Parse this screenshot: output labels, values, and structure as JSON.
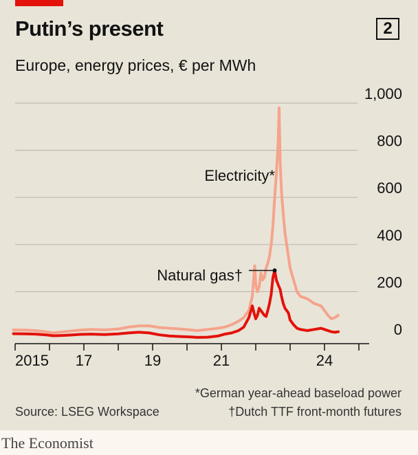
{
  "header": {
    "title": "Putin’s present",
    "chart_number": "2",
    "subtitle": "Europe, energy prices, € per MWh"
  },
  "footer": {
    "note_electricity": "*German year-ahead baseload power",
    "note_gas": "†Dutch TTF front-month futures",
    "source": "Source: LSEG Workspace",
    "brand": "The Economist"
  },
  "colors": {
    "electricity": "#f5a48d",
    "gas": "#e3120b",
    "grid": "#bfbab1",
    "accent": "#e3120b"
  },
  "chart_data": {
    "type": "line",
    "title": "Putin’s present",
    "subtitle": "Europe, energy prices, € per MWh",
    "ylim": [
      0,
      1000
    ],
    "yticks": [
      0,
      200,
      400,
      600,
      800,
      1000
    ],
    "ytick_labels": [
      "0",
      "200",
      "400",
      "600",
      "800",
      "1,000"
    ],
    "xlim": [
      2015,
      2025.3
    ],
    "xticks": [
      2015,
      2016,
      2017,
      2018,
      2019,
      2020,
      2021,
      2022,
      2023,
      2024,
      2025
    ],
    "xtick_labels": [
      {
        "x": 2015,
        "label": "2015"
      },
      {
        "x": 2017,
        "label": "17"
      },
      {
        "x": 2019,
        "label": "19"
      },
      {
        "x": 2021,
        "label": "21"
      },
      {
        "x": 2024,
        "label": "24"
      }
    ],
    "grid": true,
    "annotations": [
      {
        "series": "Electricity*",
        "text": "Electricity*"
      },
      {
        "series": "Natural gas†",
        "text": "Natural gas†"
      }
    ],
    "series": [
      {
        "name": "Electricity*",
        "x": [
          2014.95,
          2015.3,
          2015.6,
          2015.9,
          2016.1,
          2016.3,
          2016.6,
          2016.9,
          2017.2,
          2017.6,
          2018.0,
          2018.3,
          2018.6,
          2018.9,
          2019.2,
          2019.5,
          2019.8,
          2020.1,
          2020.3,
          2020.6,
          2020.9,
          2021.1,
          2021.3,
          2021.5,
          2021.65,
          2021.8,
          2021.9,
          2021.97,
          2022.0,
          2022.05,
          2022.1,
          2022.15,
          2022.2,
          2022.25,
          2022.3,
          2022.35,
          2022.4,
          2022.45,
          2022.5,
          2022.55,
          2022.6,
          2022.65,
          2022.68,
          2022.71,
          2022.75,
          2022.8,
          2022.85,
          2022.9,
          2022.95,
          2023.0,
          2023.1,
          2023.2,
          2023.3,
          2023.5,
          2023.7,
          2023.9,
          2024.0,
          2024.1,
          2024.2,
          2024.3,
          2024.4
        ],
        "values": [
          38,
          37,
          35,
          30,
          25,
          28,
          33,
          37,
          40,
          38,
          42,
          50,
          55,
          55,
          48,
          45,
          42,
          38,
          35,
          40,
          45,
          50,
          60,
          75,
          90,
          120,
          180,
          310,
          230,
          200,
          220,
          280,
          250,
          260,
          300,
          320,
          350,
          400,
          480,
          600,
          700,
          830,
          980,
          750,
          620,
          530,
          450,
          400,
          350,
          300,
          250,
          200,
          180,
          170,
          150,
          140,
          120,
          100,
          85,
          90,
          100
        ]
      },
      {
        "name": "Natural gas†",
        "x": [
          2014.95,
          2015.3,
          2015.6,
          2015.9,
          2016.1,
          2016.3,
          2016.6,
          2016.9,
          2017.2,
          2017.6,
          2018.0,
          2018.3,
          2018.6,
          2018.9,
          2019.2,
          2019.5,
          2019.8,
          2020.1,
          2020.3,
          2020.6,
          2020.9,
          2021.1,
          2021.3,
          2021.5,
          2021.65,
          2021.8,
          2021.9,
          2021.95,
          2022.0,
          2022.05,
          2022.1,
          2022.15,
          2022.2,
          2022.25,
          2022.3,
          2022.35,
          2022.4,
          2022.45,
          2022.5,
          2022.55,
          2022.6,
          2022.65,
          2022.68,
          2022.71,
          2022.75,
          2022.8,
          2022.85,
          2022.9,
          2022.95,
          2023.0,
          2023.1,
          2023.2,
          2023.3,
          2023.5,
          2023.7,
          2023.9,
          2024.0,
          2024.1,
          2024.2,
          2024.3,
          2024.4
        ],
        "values": [
          22,
          21,
          20,
          17,
          13,
          14,
          16,
          19,
          20,
          18,
          21,
          25,
          28,
          25,
          17,
          12,
          10,
          8,
          6,
          7,
          12,
          20,
          25,
          35,
          50,
          90,
          140,
          110,
          85,
          100,
          130,
          120,
          110,
          100,
          95,
          120,
          150,
          190,
          260,
          290,
          250,
          230,
          220,
          210,
          180,
          150,
          130,
          120,
          110,
          80,
          60,
          45,
          40,
          35,
          40,
          45,
          40,
          35,
          30,
          28,
          30
        ]
      }
    ]
  }
}
